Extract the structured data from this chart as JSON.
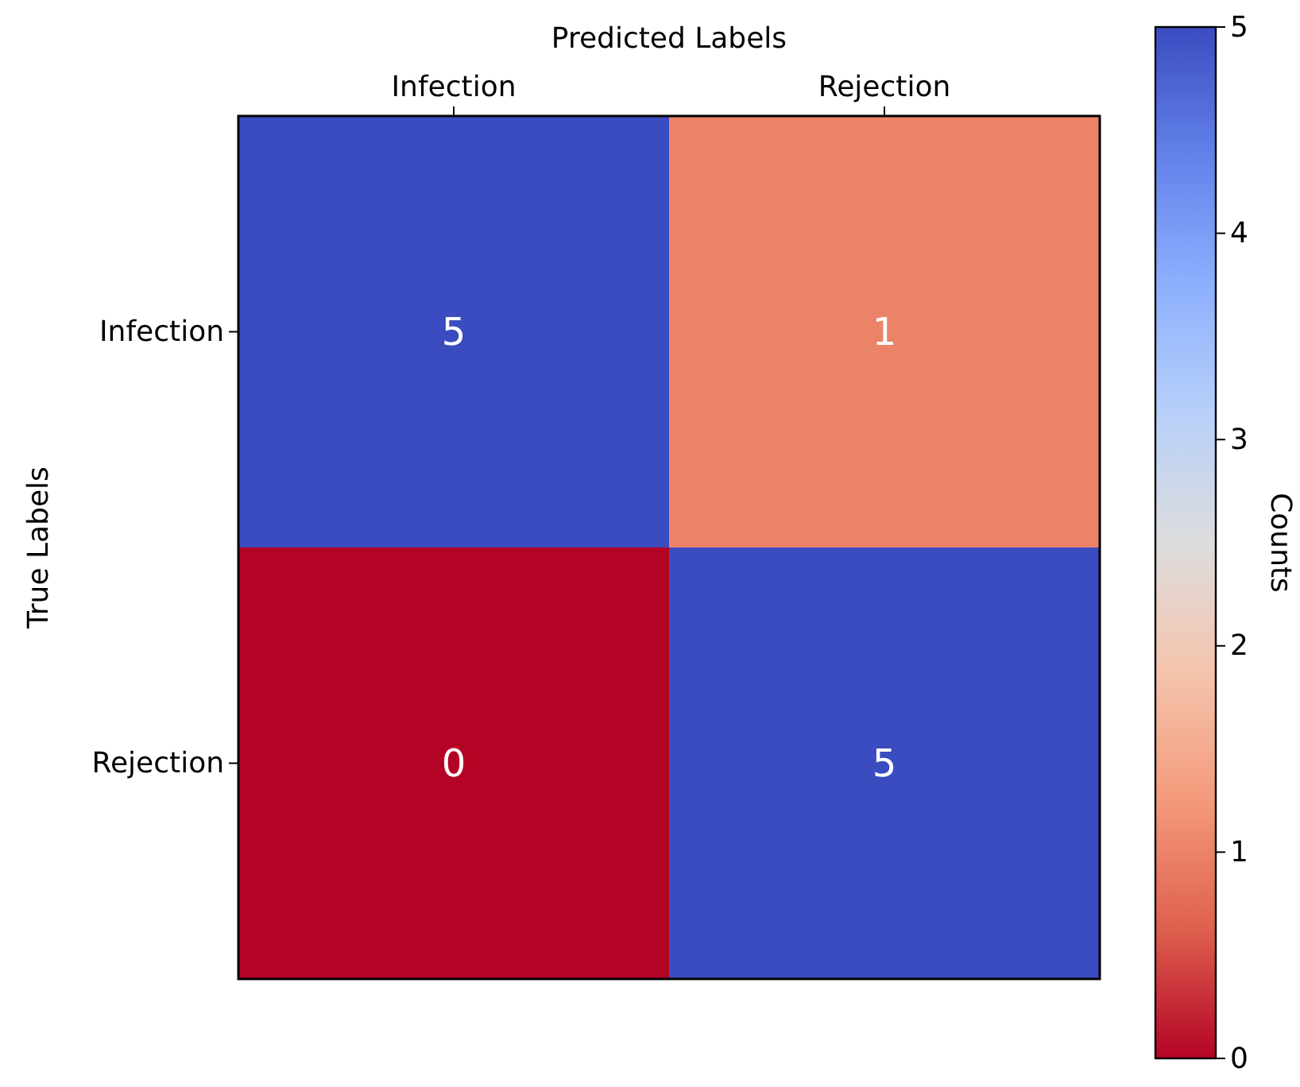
{
  "chart_data": {
    "type": "heatmap",
    "xlabel": "Predicted Labels",
    "ylabel": "True Labels",
    "clabel": "Counts",
    "categories": [
      "Infection",
      "Rejection"
    ],
    "y_categories": [
      "Infection",
      "Rejection"
    ],
    "cells": [
      [
        5,
        1
      ],
      [
        0,
        5
      ]
    ],
    "clim": [
      0,
      5
    ],
    "cticks": [
      0,
      1,
      2,
      3,
      4,
      5
    ],
    "data_labels": true
  }
}
